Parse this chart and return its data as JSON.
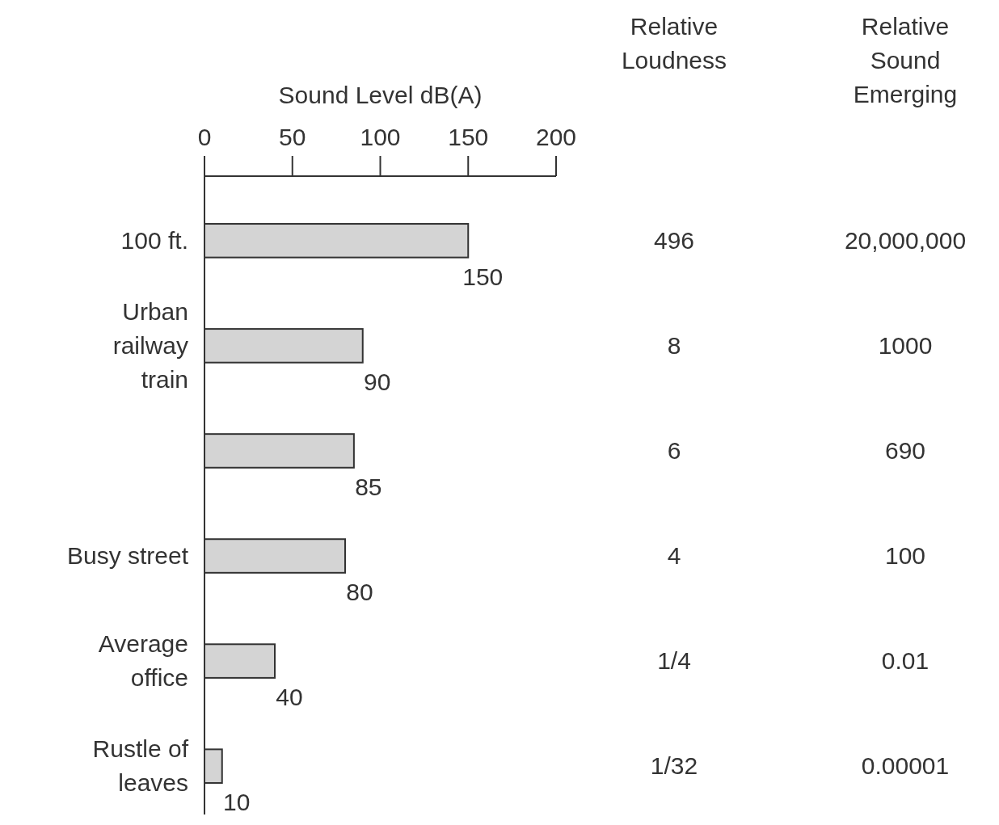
{
  "chart_data": {
    "type": "bar",
    "orientation": "horizontal",
    "xlabel": "Sound Level dB(A)",
    "categories": [
      "100 ft.",
      "Urban railway train",
      null,
      "Busy street",
      "Average office",
      "Rustle of leaves"
    ],
    "values": [
      150,
      90,
      85,
      80,
      40,
      10
    ],
    "color": "#d4d4d4",
    "xlim": [
      0,
      200
    ],
    "xticks": [
      0,
      50,
      100,
      150,
      200
    ],
    "data_labels": true,
    "annotations": [
      "Relative Loudness",
      "Relative Sound Emerging",
      "496",
      "20,000,000",
      "8",
      "1000",
      "6",
      "690",
      "4",
      "100",
      "1/4",
      "0.01",
      "1/32",
      "0.00001"
    ]
  }
}
